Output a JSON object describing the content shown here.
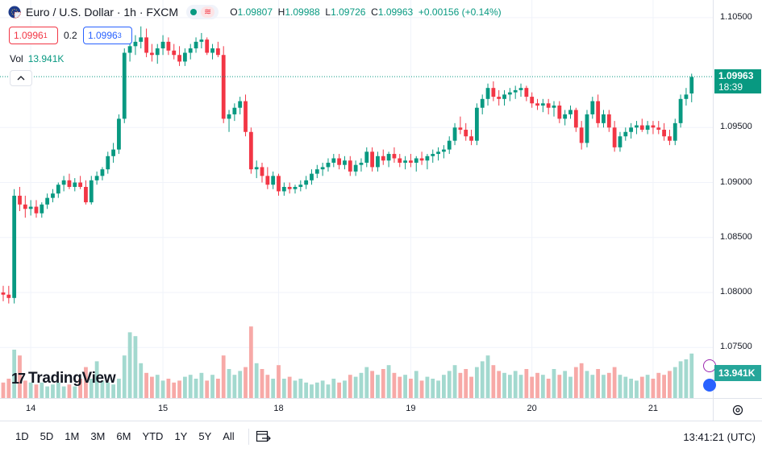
{
  "legend": {
    "symbol_title": "Euro / U.S. Dollar · 1h · FXCM",
    "open_label": "O",
    "open": "1.09807",
    "high_label": "H",
    "high": "1.09988",
    "low_label": "L",
    "low": "1.09726",
    "close_label": "C",
    "close": "1.09963",
    "change": "+0.00156 (+0.14%)",
    "wave_glyph": "≋"
  },
  "quote": {
    "bid": "1.0996",
    "bid_sup": "1",
    "spread": "0.2",
    "ask": "1.0996",
    "ask_sup": "3"
  },
  "volume": {
    "label": "Vol",
    "value": "13.941K"
  },
  "price_axis": {
    "ticks": [
      "1.10500",
      "1.09500",
      "1.09000",
      "1.08500",
      "1.08000",
      "1.07500"
    ],
    "current_price": "1.09963",
    "countdown": "18:39",
    "volume_tag": "13.941K"
  },
  "time_axis": {
    "labels": [
      "14",
      "15",
      "18",
      "19",
      "20",
      "21"
    ]
  },
  "logo": {
    "text": "TradingView",
    "mark": "17"
  },
  "bottom_bar": {
    "ranges": [
      "1D",
      "5D",
      "1M",
      "3M",
      "6M",
      "YTD",
      "1Y",
      "5Y",
      "All"
    ],
    "clock": "13:41:21 (UTC)"
  },
  "colors": {
    "up": "#089981",
    "down": "#f23645",
    "vol_up": "#a3d9cf",
    "vol_down": "#f7a9a7"
  },
  "chart_data": {
    "type": "candlestick",
    "title": "Euro / U.S. Dollar · 1h · FXCM",
    "interval": "1h",
    "ylim": [
      1.0704,
      1.1066
    ],
    "x_ticks": [
      "14",
      "15",
      "18",
      "19",
      "20",
      "21"
    ],
    "ohlc": [
      [
        1.08,
        1.0806,
        1.0792,
        1.0798
      ],
      [
        1.0798,
        1.0806,
        1.079,
        1.0795
      ],
      [
        1.0795,
        1.0894,
        1.079,
        1.0888
      ],
      [
        1.0888,
        1.0896,
        1.0874,
        1.088
      ],
      [
        1.088,
        1.0888,
        1.0868,
        1.0876
      ],
      [
        1.0876,
        1.0884,
        1.087,
        1.0878
      ],
      [
        1.0878,
        1.0884,
        1.0868,
        1.0872
      ],
      [
        1.0872,
        1.0882,
        1.0868,
        1.088
      ],
      [
        1.088,
        1.089,
        1.0876,
        1.0886
      ],
      [
        1.0886,
        1.0894,
        1.0882,
        1.089
      ],
      [
        1.089,
        1.09,
        1.0886,
        1.0898
      ],
      [
        1.0898,
        1.0906,
        1.0892,
        1.0902
      ],
      [
        1.0902,
        1.0908,
        1.0894,
        1.0896
      ],
      [
        1.0896,
        1.0904,
        1.0892,
        1.09
      ],
      [
        1.09,
        1.0906,
        1.0894,
        1.0896
      ],
      [
        1.0896,
        1.0902,
        1.088,
        1.0882
      ],
      [
        1.0882,
        1.0906,
        1.088,
        1.0902
      ],
      [
        1.0902,
        1.091,
        1.0898,
        1.0906
      ],
      [
        1.0906,
        1.0914,
        1.0902,
        1.0912
      ],
      [
        1.0912,
        1.0928,
        1.0908,
        1.0924
      ],
      [
        1.0924,
        1.0936,
        1.0918,
        1.093
      ],
      [
        1.093,
        1.0962,
        1.0926,
        1.0958
      ],
      [
        1.0958,
        1.1022,
        1.0954,
        1.1018
      ],
      [
        1.1018,
        1.103,
        1.101,
        1.1024
      ],
      [
        1.1024,
        1.1034,
        1.1016,
        1.1028
      ],
      [
        1.1028,
        1.1042,
        1.1022,
        1.1032
      ],
      [
        1.1032,
        1.104,
        1.1014,
        1.1018
      ],
      [
        1.1018,
        1.1026,
        1.101,
        1.1016
      ],
      [
        1.1016,
        1.1026,
        1.1008,
        1.1022
      ],
      [
        1.1022,
        1.1034,
        1.1016,
        1.1028
      ],
      [
        1.1028,
        1.1032,
        1.1016,
        1.102
      ],
      [
        1.102,
        1.1026,
        1.1012,
        1.1016
      ],
      [
        1.1016,
        1.1024,
        1.1006,
        1.101
      ],
      [
        1.101,
        1.1022,
        1.1006,
        1.1018
      ],
      [
        1.1018,
        1.1026,
        1.1012,
        1.1022
      ],
      [
        1.1022,
        1.1032,
        1.1018,
        1.1028
      ],
      [
        1.1028,
        1.1036,
        1.1022,
        1.103
      ],
      [
        1.103,
        1.1032,
        1.1016,
        1.1018
      ],
      [
        1.1018,
        1.1026,
        1.1012,
        1.1022
      ],
      [
        1.1022,
        1.1028,
        1.1014,
        1.1016
      ],
      [
        1.1016,
        1.1024,
        1.0954,
        1.0958
      ],
      [
        1.0958,
        1.0966,
        1.0946,
        1.0962
      ],
      [
        1.0962,
        1.0972,
        1.0956,
        1.0968
      ],
      [
        1.0968,
        1.0978,
        1.0962,
        1.0974
      ],
      [
        1.0974,
        1.098,
        1.0942,
        1.0946
      ],
      [
        1.0946,
        1.095,
        1.0908,
        1.0912
      ],
      [
        1.0912,
        1.092,
        1.0904,
        1.0914
      ],
      [
        1.0914,
        1.0918,
        1.09,
        1.0906
      ],
      [
        1.0906,
        1.0914,
        1.0894,
        1.0898
      ],
      [
        1.0898,
        1.091,
        1.0894,
        1.0906
      ],
      [
        1.0906,
        1.0908,
        1.0888,
        1.0892
      ],
      [
        1.0892,
        1.09,
        1.0888,
        1.0896
      ],
      [
        1.0896,
        1.09,
        1.089,
        1.0894
      ],
      [
        1.0894,
        1.0898,
        1.089,
        1.0896
      ],
      [
        1.0896,
        1.0902,
        1.0892,
        1.0898
      ],
      [
        1.0898,
        1.0906,
        1.0894,
        1.0902
      ],
      [
        1.0902,
        1.0912,
        1.0898,
        1.0908
      ],
      [
        1.0908,
        1.0916,
        1.0904,
        1.0912
      ],
      [
        1.0912,
        1.0918,
        1.0906,
        1.0914
      ],
      [
        1.0914,
        1.0922,
        1.091,
        1.0918
      ],
      [
        1.0918,
        1.0926,
        1.0914,
        1.0922
      ],
      [
        1.0922,
        1.0926,
        1.0912,
        1.0916
      ],
      [
        1.0916,
        1.0924,
        1.0912,
        1.092
      ],
      [
        1.092,
        1.0924,
        1.0906,
        1.091
      ],
      [
        1.091,
        1.092,
        1.0906,
        1.0916
      ],
      [
        1.0916,
        1.0922,
        1.091,
        1.0918
      ],
      [
        1.0918,
        1.0932,
        1.0914,
        1.0928
      ],
      [
        1.0928,
        1.0932,
        1.091,
        1.0914
      ],
      [
        1.0914,
        1.0928,
        1.091,
        1.0924
      ],
      [
        1.0924,
        1.093,
        1.0916,
        1.092
      ],
      [
        1.092,
        1.0928,
        1.0914,
        1.0926
      ],
      [
        1.0926,
        1.0932,
        1.0918,
        1.0922
      ],
      [
        1.0922,
        1.0926,
        1.0914,
        1.0918
      ],
      [
        1.0918,
        1.0924,
        1.0912,
        1.092
      ],
      [
        1.092,
        1.0926,
        1.0914,
        1.0918
      ],
      [
        1.0918,
        1.0924,
        1.091,
        1.0922
      ],
      [
        1.0922,
        1.0928,
        1.0916,
        1.092
      ],
      [
        1.092,
        1.0926,
        1.0912,
        1.0924
      ],
      [
        1.0924,
        1.093,
        1.0918,
        1.0926
      ],
      [
        1.0926,
        1.0932,
        1.092,
        1.0928
      ],
      [
        1.0928,
        1.0934,
        1.0922,
        1.093
      ],
      [
        1.093,
        1.0942,
        1.0926,
        1.0938
      ],
      [
        1.0938,
        1.0954,
        1.0934,
        1.095
      ],
      [
        1.095,
        1.096,
        1.0944,
        1.0948
      ],
      [
        1.0948,
        1.0954,
        1.0938,
        1.0942
      ],
      [
        1.0942,
        1.0948,
        1.0934,
        1.0938
      ],
      [
        1.0938,
        1.0972,
        1.0934,
        1.0968
      ],
      [
        1.0968,
        1.098,
        1.0962,
        1.0976
      ],
      [
        1.0976,
        1.099,
        1.097,
        1.0986
      ],
      [
        1.0986,
        1.0992,
        1.0974,
        1.0978
      ],
      [
        1.0978,
        1.0984,
        1.097,
        1.0976
      ],
      [
        1.0976,
        1.0984,
        1.097,
        1.098
      ],
      [
        1.098,
        1.0986,
        1.0974,
        1.0982
      ],
      [
        1.0982,
        1.0988,
        1.0976,
        1.0984
      ],
      [
        1.0984,
        1.099,
        1.0978,
        1.0986
      ],
      [
        1.0986,
        1.0988,
        1.0974,
        1.0978
      ],
      [
        1.0978,
        1.0982,
        1.0968,
        1.0972
      ],
      [
        1.0972,
        1.0976,
        1.0966,
        1.097
      ],
      [
        1.097,
        1.0976,
        1.0964,
        1.0972
      ],
      [
        1.0972,
        1.0976,
        1.0962,
        1.0968
      ],
      [
        1.0968,
        1.0974,
        1.096,
        1.097
      ],
      [
        1.097,
        1.0974,
        1.0954,
        1.0958
      ],
      [
        1.0958,
        1.0966,
        1.0952,
        1.0962
      ],
      [
        1.0962,
        1.097,
        1.0958,
        1.0966
      ],
      [
        1.0966,
        1.0968,
        1.0946,
        1.095
      ],
      [
        1.095,
        1.0956,
        1.093,
        1.0936
      ],
      [
        1.0936,
        1.0966,
        1.0932,
        1.0962
      ],
      [
        1.0962,
        1.0978,
        1.0958,
        1.0974
      ],
      [
        1.0974,
        1.098,
        1.095,
        1.0954
      ],
      [
        1.0954,
        1.0966,
        1.095,
        1.0962
      ],
      [
        1.0962,
        1.0966,
        1.0946,
        1.095
      ],
      [
        1.095,
        1.0956,
        1.0928,
        1.0932
      ],
      [
        1.0932,
        1.0946,
        1.0928,
        1.0942
      ],
      [
        1.0942,
        1.095,
        1.0938,
        1.0946
      ],
      [
        1.0946,
        1.0954,
        1.094,
        1.095
      ],
      [
        1.095,
        1.0956,
        1.0944,
        1.0952
      ],
      [
        1.0952,
        1.0958,
        1.0946,
        1.0948
      ],
      [
        1.0948,
        1.0956,
        1.0944,
        1.0952
      ],
      [
        1.0952,
        1.0956,
        1.0944,
        1.095
      ],
      [
        1.095,
        1.0956,
        1.0944,
        1.0948
      ],
      [
        1.0948,
        1.0954,
        1.0938,
        1.0942
      ],
      [
        1.0942,
        1.0948,
        1.0934,
        1.0938
      ],
      [
        1.0938,
        1.0958,
        1.0934,
        1.0954
      ],
      [
        1.0954,
        1.098,
        1.095,
        1.0976
      ],
      [
        1.0976,
        1.0986,
        1.097,
        1.098
      ],
      [
        1.0981,
        1.0999,
        1.0973,
        1.0996
      ]
    ],
    "volume_ratio": [
      0.08,
      0.1,
      0.25,
      0.22,
      0.09,
      0.08,
      0.07,
      0.08,
      0.06,
      0.07,
      0.08,
      0.06,
      0.07,
      0.06,
      0.1,
      0.16,
      0.1,
      0.19,
      0.09,
      0.08,
      0.07,
      0.1,
      0.22,
      0.34,
      0.32,
      0.18,
      0.13,
      0.11,
      0.12,
      0.09,
      0.1,
      0.08,
      0.09,
      0.11,
      0.12,
      0.1,
      0.13,
      0.09,
      0.12,
      0.1,
      0.22,
      0.15,
      0.12,
      0.14,
      0.16,
      0.37,
      0.18,
      0.15,
      0.12,
      0.1,
      0.17,
      0.1,
      0.11,
      0.09,
      0.1,
      0.08,
      0.07,
      0.08,
      0.09,
      0.07,
      0.1,
      0.08,
      0.09,
      0.12,
      0.11,
      0.13,
      0.16,
      0.14,
      0.12,
      0.15,
      0.17,
      0.13,
      0.11,
      0.12,
      0.1,
      0.14,
      0.09,
      0.11,
      0.1,
      0.09,
      0.12,
      0.14,
      0.17,
      0.13,
      0.15,
      0.11,
      0.16,
      0.19,
      0.22,
      0.17,
      0.14,
      0.13,
      0.12,
      0.14,
      0.12,
      0.15,
      0.11,
      0.13,
      0.12,
      0.1,
      0.15,
      0.12,
      0.14,
      0.11,
      0.16,
      0.18,
      0.14,
      0.12,
      0.15,
      0.12,
      0.13,
      0.16,
      0.12,
      0.11,
      0.1,
      0.09,
      0.11,
      0.12,
      0.1,
      0.13,
      0.12,
      0.14,
      0.16,
      0.19,
      0.2,
      0.23
    ]
  }
}
